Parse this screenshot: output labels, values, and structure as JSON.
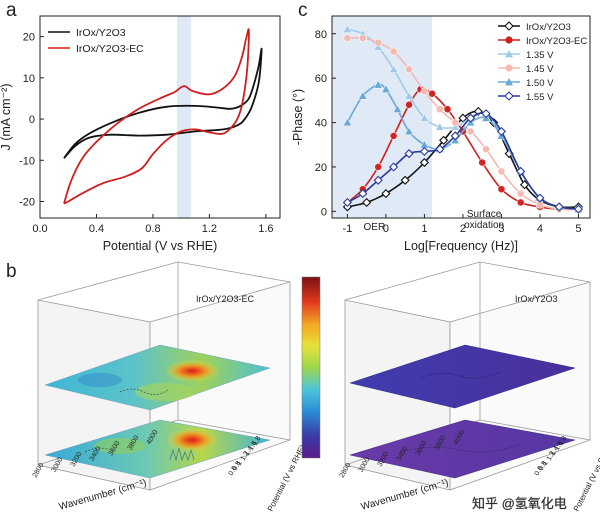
{
  "panels": {
    "a": {
      "label": "a"
    },
    "b": {
      "label": "b"
    },
    "c": {
      "label": "c"
    }
  },
  "colors": {
    "black": "#111111",
    "red": "#d01f1f",
    "shade": "#dbe5f5",
    "light_blue": "#9fcbe8",
    "mid_blue": "#6aa8d8",
    "dark_blue": "#2a3a9a",
    "pink": "#f4b9b1",
    "salmon": "#ee8f86"
  },
  "chart_data": [
    {
      "id": "a",
      "type": "line",
      "title": "",
      "xlabel": "Potential (V vs RHE)",
      "ylabel": "J (mA cm⁻²)",
      "xlim": [
        0.0,
        1.7
      ],
      "ylim": [
        -24,
        25
      ],
      "xticks": [
        0.0,
        0.4,
        0.8,
        1.2,
        1.6
      ],
      "xtick_labels": [
        "0.0",
        "0.4",
        "0.8",
        "1.2",
        "1.6"
      ],
      "yticks": [
        -20,
        -10,
        0,
        10,
        20
      ],
      "ytick_labels": [
        "-20",
        "-10",
        "0",
        "10",
        "20"
      ],
      "shaded_band": [
        0.97,
        1.07
      ],
      "legend": {
        "position": "top-left",
        "entries": [
          "IrOx/Y2O3",
          "IrOx/Y2O3-EC"
        ]
      },
      "series": [
        {
          "name": "IrOx/Y2O3",
          "color_key": "black",
          "x": [
            0.17,
            0.25,
            0.35,
            0.5,
            0.7,
            0.9,
            1.1,
            1.25,
            1.35,
            1.42,
            1.48,
            1.52,
            1.55,
            1.57,
            1.55,
            1.5,
            1.45,
            1.4,
            1.3,
            1.1,
            0.9,
            0.7,
            0.5,
            0.35,
            0.25,
            0.17
          ],
          "y": [
            -9.5,
            -6.0,
            -3.5,
            -1.0,
            1.5,
            3.0,
            3.2,
            2.8,
            2.5,
            3.2,
            5.0,
            9.0,
            13.0,
            17.0,
            9.0,
            3.0,
            0.0,
            -1.5,
            -2.5,
            -3.0,
            -3.8,
            -4.0,
            -3.8,
            -4.5,
            -6.5,
            -9.5
          ]
        },
        {
          "name": "IrOx/Y2O3-EC",
          "color_key": "red",
          "x": [
            0.17,
            0.22,
            0.3,
            0.4,
            0.55,
            0.7,
            0.85,
            0.95,
            1.02,
            1.08,
            1.2,
            1.3,
            1.38,
            1.43,
            1.46,
            1.48,
            1.47,
            1.45,
            1.42,
            1.38,
            1.3,
            1.2,
            1.1,
            1.0,
            0.9,
            0.8,
            0.72,
            0.6,
            0.45,
            0.3,
            0.2,
            0.17
          ],
          "y": [
            -20.5,
            -15.0,
            -9.5,
            -5.5,
            -1.0,
            2.5,
            5.0,
            6.5,
            8.0,
            6.8,
            6.0,
            7.5,
            10.5,
            15.0,
            19.5,
            21.5,
            13.0,
            7.0,
            2.0,
            -1.0,
            -3.5,
            -3.2,
            -2.5,
            -3.0,
            -5.0,
            -8.5,
            -12.0,
            -14.0,
            -15.5,
            -18.0,
            -20.0,
            -20.5
          ]
        }
      ]
    },
    {
      "id": "c",
      "type": "line",
      "title": "",
      "xlabel": "Log[Frequency (Hz)]",
      "ylabel": "-Phase (°)",
      "xlim": [
        -1.4,
        5.3
      ],
      "ylim": [
        -3,
        88
      ],
      "xticks": [
        -1,
        0,
        1,
        2,
        3,
        4,
        5
      ],
      "xtick_labels": [
        "-1",
        "0",
        "1",
        "2",
        "3",
        "4",
        "5"
      ],
      "yticks": [
        0,
        20,
        40,
        60,
        80
      ],
      "ytick_labels": [
        "0",
        "20",
        "40",
        "60",
        "80"
      ],
      "shaded_band": [
        -1.4,
        1.2
      ],
      "annotations": [
        {
          "text": "OER",
          "x": -0.3,
          "y": -4
        },
        {
          "text": "Surface",
          "x": 2.55,
          "y": 2
        },
        {
          "text": "oxidation",
          "x": 2.55,
          "y": -3
        }
      ],
      "legend": {
        "position": "top-right",
        "entries": [
          "IrOx/Y2O3",
          "IrOx/Y2O3-EC",
          "1.35 V",
          "1.45 V",
          "1.50 V",
          "1.55 V"
        ]
      },
      "series": [
        {
          "name": "IrOx/Y2O3",
          "color_key": "black",
          "marker": "diamond",
          "x": [
            -1.0,
            -0.5,
            0.0,
            0.5,
            1.0,
            1.5,
            2.0,
            2.4,
            2.8,
            3.2,
            3.6,
            4.0,
            4.5,
            5.0
          ],
          "y": [
            2,
            4,
            8,
            14,
            22,
            32,
            42,
            45,
            40,
            26,
            12,
            5,
            2,
            2
          ]
        },
        {
          "name": "IrOx/Y2O3-EC",
          "color_key": "red",
          "marker": "sphere",
          "x": [
            -1.0,
            -0.6,
            -0.2,
            0.2,
            0.6,
            0.9,
            1.2,
            1.6,
            2.0,
            2.5,
            3.0,
            3.5,
            4.0,
            4.5,
            5.0
          ],
          "y": [
            4,
            10,
            20,
            34,
            48,
            55,
            53,
            46,
            36,
            22,
            10,
            4,
            2,
            1,
            1
          ]
        },
        {
          "name": "1.35 V",
          "color_key": "light_blue",
          "marker": "triangle",
          "x": [
            -1.0,
            -0.6,
            -0.2,
            0.2,
            0.6,
            1.0,
            1.4,
            1.8,
            2.2,
            2.6,
            3.0,
            3.5,
            4.0,
            4.5,
            5.0
          ],
          "y": [
            82,
            80,
            74,
            64,
            52,
            42,
            38,
            38,
            42,
            44,
            35,
            18,
            6,
            2,
            1
          ]
        },
        {
          "name": "1.45 V",
          "color_key": "pink",
          "marker": "sphere",
          "x": [
            -1.0,
            -0.6,
            -0.2,
            0.2,
            0.6,
            1.0,
            1.4,
            1.8,
            2.2,
            2.6,
            3.0,
            3.5,
            4.0,
            4.5,
            5.0
          ],
          "y": [
            78,
            78,
            76,
            72,
            64,
            54,
            46,
            40,
            36,
            28,
            18,
            8,
            3,
            1,
            1
          ]
        },
        {
          "name": "1.50 V",
          "color_key": "mid_blue",
          "marker": "triangle",
          "x": [
            -1.0,
            -0.6,
            -0.2,
            0.0,
            0.3,
            0.6,
            1.0,
            1.4,
            1.8,
            2.2,
            2.6,
            3.0,
            3.5,
            4.0,
            4.5,
            5.0
          ],
          "y": [
            40,
            52,
            57,
            55,
            46,
            36,
            30,
            28,
            32,
            40,
            42,
            34,
            18,
            6,
            2,
            1
          ]
        },
        {
          "name": "1.55 V",
          "color_key": "dark_blue",
          "marker": "diamond",
          "x": [
            -1.0,
            -0.6,
            -0.2,
            0.2,
            0.6,
            1.0,
            1.4,
            1.8,
            2.2,
            2.6,
            3.0,
            3.5,
            4.0,
            4.5,
            5.0
          ],
          "y": [
            4,
            8,
            14,
            20,
            26,
            27,
            28,
            34,
            42,
            44,
            36,
            18,
            6,
            2,
            1
          ]
        }
      ]
    },
    {
      "id": "b-left",
      "type": "heatmap",
      "title": "IrOx/Y2O3-EC",
      "xlabel": "Wavenumber (cm⁻¹)",
      "ylabel": "Potential (V vs RHE)",
      "xtick_labels": [
        "2800",
        "3000",
        "3200",
        "3400",
        "3600",
        "3800",
        "4000"
      ],
      "ytick_labels": [
        "0.6",
        "0.8",
        "1",
        "1.2",
        "1.4",
        "1.6",
        "1.8"
      ],
      "ylabel_side": "Potential (V vs RHE)"
    },
    {
      "id": "b-right",
      "type": "heatmap",
      "title": "IrOx/Y2O3",
      "xlabel": "Wavenumber (cm⁻¹)",
      "ylabel": "Potential (V vs RHE)",
      "xtick_labels": [
        "2800",
        "3000",
        "3200",
        "3400",
        "3600",
        "3800",
        "4000"
      ],
      "ytick_labels": [
        "0.6",
        "0.8",
        "1",
        "1.2",
        "1.4",
        "1.6",
        "1.8"
      ]
    }
  ],
  "watermark": {
    "text": "知乎 @氢氧化电"
  }
}
